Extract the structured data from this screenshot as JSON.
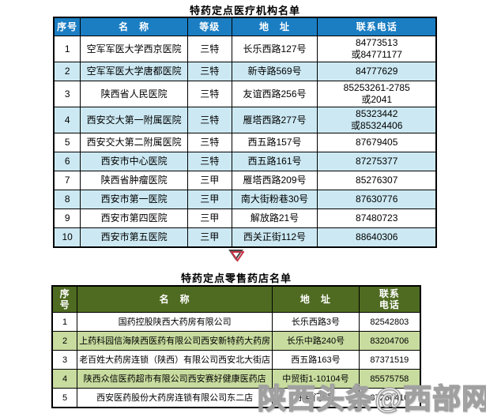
{
  "titles": {
    "table1": "特药定点医疗机构名单",
    "table2": "特药定点零售药店名单"
  },
  "divider": {
    "icon": "down-triangle-icon"
  },
  "watermark": {
    "text": "陕西头条@西部网"
  },
  "colors": {
    "table1_header_bg": "#1b7ec3",
    "table1_alt_row_bg": "#cce9f3",
    "table2_header_bg": "#4f6b21",
    "table2_alt_row_bg": "#c8dc9f",
    "header_text": "#ffffff",
    "triangle_red": "#c63347",
    "triangle_dark": "#474747",
    "border": "#000000"
  },
  "table1": {
    "columns": [
      "序号",
      "名　称",
      "等级",
      "地　址",
      "联系电话"
    ],
    "col_keys": [
      "no",
      "name",
      "grade",
      "address",
      "phone"
    ],
    "rows": [
      {
        "no": "1",
        "name": "空军军医大学西京医院",
        "grade": "三特",
        "address": "长乐西路127号",
        "phone": "84773513\n或84771177",
        "highlight": false
      },
      {
        "no": "2",
        "name": "空军军医大学唐都医院",
        "grade": "三特",
        "address": "新寺路569号",
        "phone": "84777629",
        "highlight": true
      },
      {
        "no": "3",
        "name": "陕西省人民医院",
        "grade": "三特",
        "address": "友谊西路256号",
        "phone": "85253261-2785\n或2041",
        "highlight": false
      },
      {
        "no": "4",
        "name": "西安交大第一附属医院",
        "grade": "三特",
        "address": "雁塔西路277号",
        "phone": "85323442\n或85324406",
        "highlight": true
      },
      {
        "no": "5",
        "name": "西安交大第二附属医院",
        "grade": "三特",
        "address": "西五路157号",
        "phone": "87679405",
        "highlight": false
      },
      {
        "no": "6",
        "name": "西安市中心医院",
        "grade": "三特",
        "address": "西五路161号",
        "phone": "87275377",
        "highlight": true
      },
      {
        "no": "7",
        "name": "陕西省肿瘤医院",
        "grade": "三甲",
        "address": "雁塔西路209号",
        "phone": "85276307",
        "highlight": false
      },
      {
        "no": "8",
        "name": "西安市第一医院",
        "grade": "三甲",
        "address": "南大街粉巷30号",
        "phone": "87630776",
        "highlight": true
      },
      {
        "no": "9",
        "name": "西安市第四医院",
        "grade": "三甲",
        "address": "解放路21号",
        "phone": "87480723",
        "highlight": false
      },
      {
        "no": "10",
        "name": "西安市第五医院",
        "grade": "三甲",
        "address": "西关正街112号",
        "phone": "88640306",
        "highlight": true
      }
    ]
  },
  "table2": {
    "columns": [
      "序\n号",
      "名　称",
      "地　址",
      "联系\n电话"
    ],
    "col_keys": [
      "no",
      "name",
      "address",
      "phone"
    ],
    "rows": [
      {
        "no": "1",
        "name": "国药控股陕西大药房有限公司",
        "address": "长乐西路3号",
        "phone": "82542803",
        "highlight": false
      },
      {
        "no": "2",
        "name": "上药科园信海陕西医药有限公司西安新特药大药房",
        "address": "长乐中路240号",
        "phone": "83204706",
        "highlight": true
      },
      {
        "no": "3",
        "name": "老百姓大药房连锁（陕西）有限公司西安北大街店",
        "address": "西五路163号",
        "phone": "87371519",
        "highlight": false
      },
      {
        "no": "4",
        "name": "陕西众信医药超市有限公司西安赛好健康医药店",
        "address": "中贸街1-10104号",
        "phone": "85575758",
        "highlight": true
      },
      {
        "no": "5",
        "name": "西安医药股份大药房连锁有限公司东二店",
        "address": "东县门8号",
        "phone": "87260410",
        "highlight": false
      }
    ]
  }
}
